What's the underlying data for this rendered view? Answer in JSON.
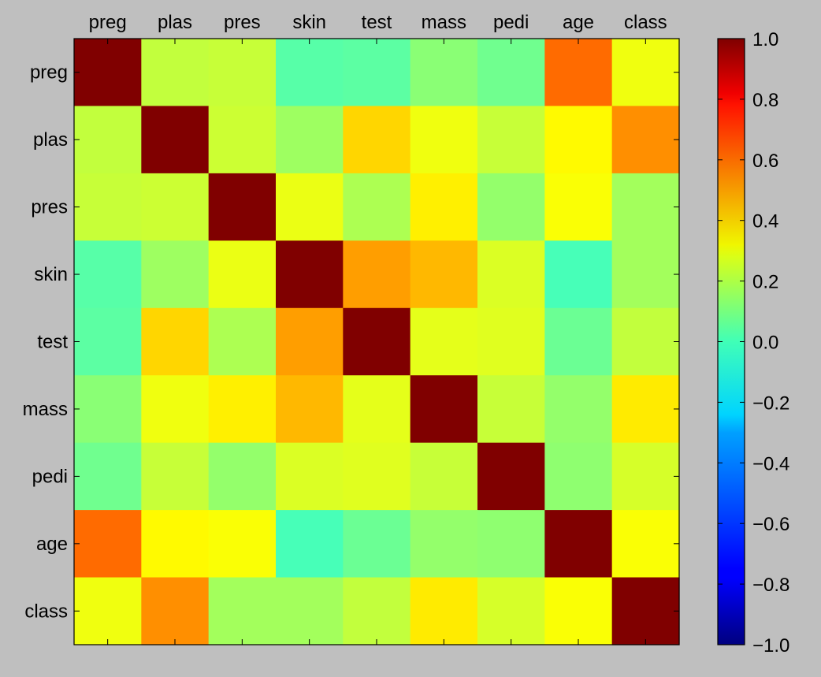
{
  "chart_data": {
    "type": "heatmap",
    "x_labels": [
      "preg",
      "plas",
      "pres",
      "skin",
      "test",
      "mass",
      "pedi",
      "age",
      "class"
    ],
    "y_labels": [
      "preg",
      "plas",
      "pres",
      "skin",
      "test",
      "mass",
      "pedi",
      "age",
      "class"
    ],
    "matrix": [
      [
        1.0,
        0.13,
        0.14,
        -0.08,
        -0.07,
        0.02,
        -0.03,
        0.54,
        0.22
      ],
      [
        0.13,
        1.0,
        0.15,
        0.06,
        0.33,
        0.22,
        0.14,
        0.26,
        0.47
      ],
      [
        0.14,
        0.15,
        1.0,
        0.21,
        0.09,
        0.28,
        0.04,
        0.24,
        0.07
      ],
      [
        -0.08,
        0.06,
        0.21,
        1.0,
        0.44,
        0.39,
        0.18,
        -0.11,
        0.07
      ],
      [
        -0.07,
        0.33,
        0.09,
        0.44,
        1.0,
        0.2,
        0.19,
        -0.04,
        0.13
      ],
      [
        0.02,
        0.22,
        0.28,
        0.39,
        0.2,
        1.0,
        0.14,
        0.04,
        0.29
      ],
      [
        -0.03,
        0.14,
        0.04,
        0.18,
        0.19,
        0.14,
        1.0,
        0.03,
        0.17
      ],
      [
        0.54,
        0.26,
        0.24,
        -0.11,
        -0.04,
        0.04,
        0.03,
        1.0,
        0.24
      ],
      [
        0.22,
        0.47,
        0.07,
        0.07,
        0.13,
        0.29,
        0.17,
        0.24,
        1.0
      ]
    ],
    "vmin": -1.0,
    "vmax": 1.0,
    "colormap": "jet",
    "colorbar_ticks": [
      "1.0",
      "0.8",
      "0.6",
      "0.4",
      "0.2",
      "0.0",
      "−0.2",
      "−0.4",
      "−0.6",
      "−0.8",
      "−1.0"
    ],
    "colorbar_values": [
      1.0,
      0.8,
      0.6,
      0.4,
      0.2,
      0.0,
      -0.2,
      -0.4,
      -0.6,
      -0.8,
      -1.0
    ],
    "x_tick_position": "top",
    "colorbar_position": "right",
    "grid": false,
    "background_color": "#bfbfbf"
  }
}
